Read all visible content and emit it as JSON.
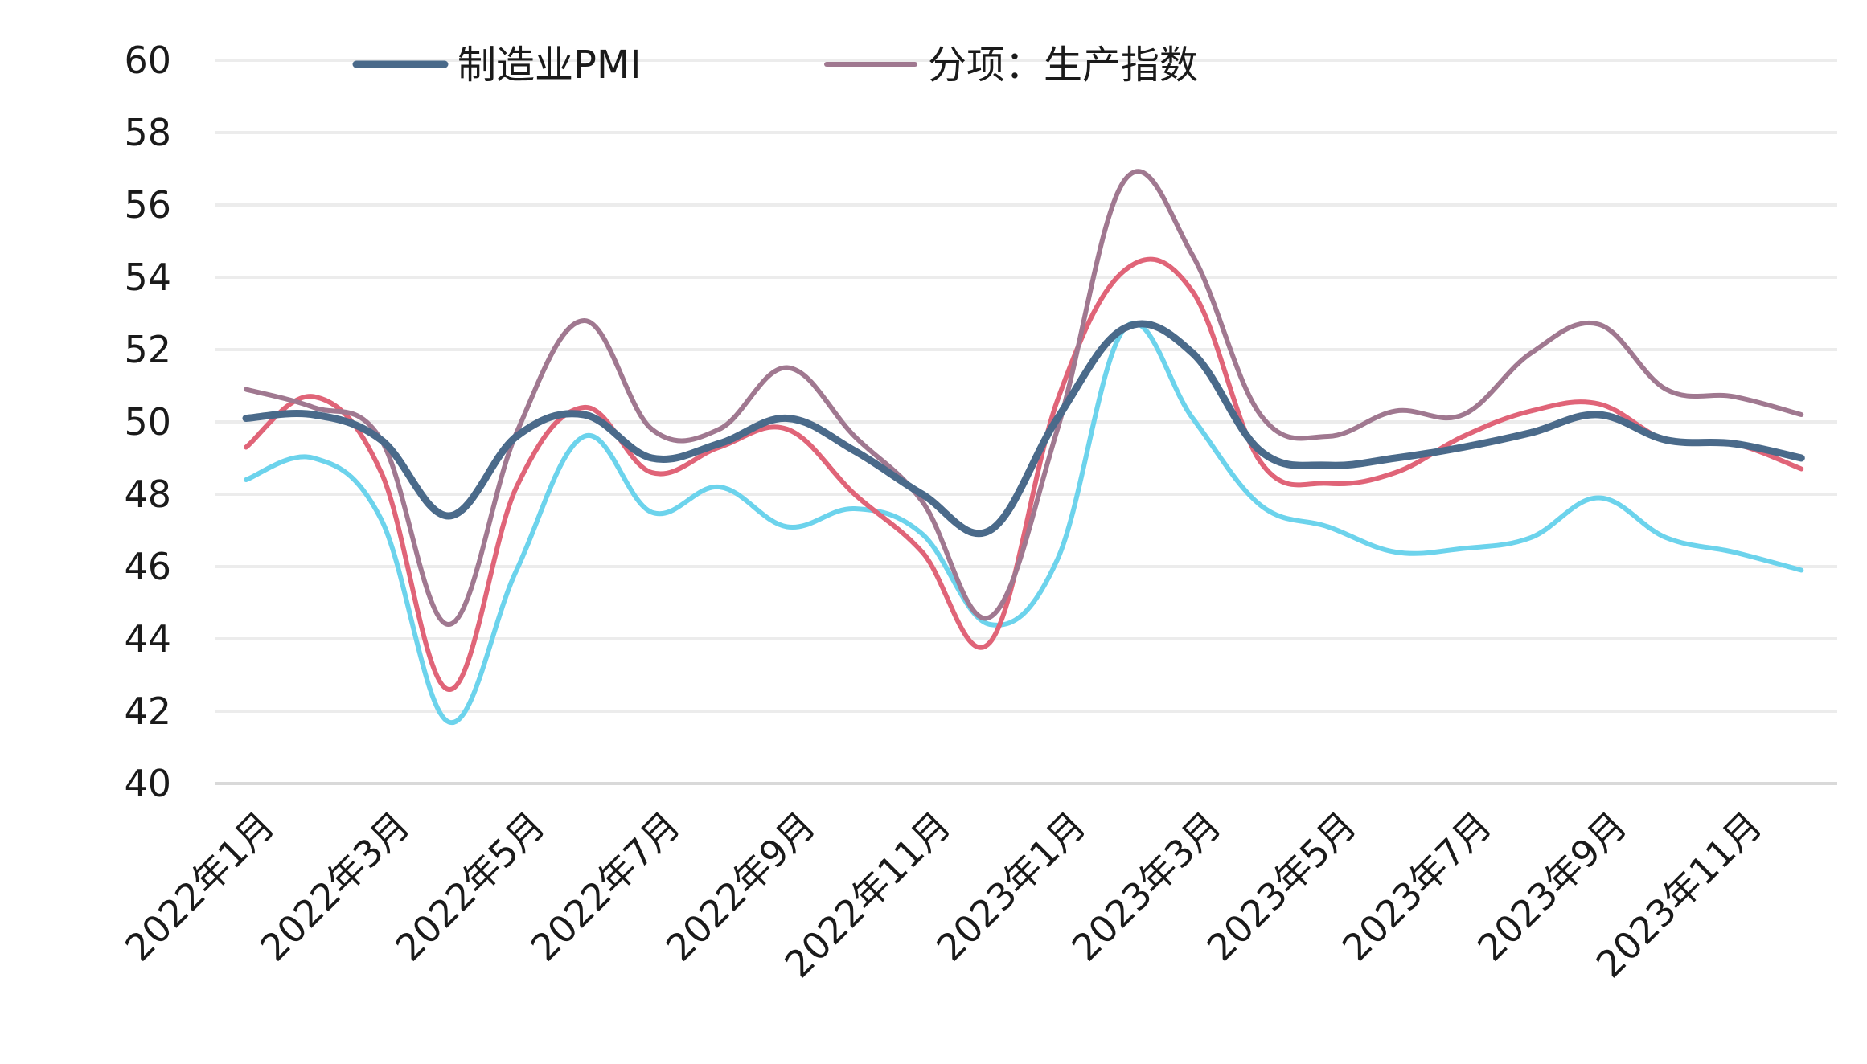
{
  "chart_data": {
    "type": "line",
    "title": "",
    "xlabel": "",
    "ylabel": "",
    "ylim": [
      40,
      60
    ],
    "y_ticks": [
      40,
      42,
      44,
      46,
      48,
      50,
      52,
      54,
      56,
      58,
      60
    ],
    "grid": true,
    "legend_position": "top",
    "categories": [
      "2022年1月",
      "2022年2月",
      "2022年3月",
      "2022年4月",
      "2022年5月",
      "2022年6月",
      "2022年7月",
      "2022年8月",
      "2022年9月",
      "2022年10月",
      "2022年11月",
      "2022年12月",
      "2023年1月",
      "2023年2月",
      "2023年3月",
      "2023年4月",
      "2023年5月",
      "2023年6月",
      "2023年7月",
      "2023年8月",
      "2023年9月",
      "2023年10月",
      "2023年11月",
      "2023年12月"
    ],
    "x_tick_labels": [
      "2022年1月",
      "2022年3月",
      "2022年5月",
      "2022年7月",
      "2022年9月",
      "2022年11月",
      "2023年1月",
      "2023年3月",
      "2023年5月",
      "2023年7月",
      "2023年9月",
      "2023年11月"
    ],
    "series": [
      {
        "name": "制造业PMI",
        "color": "#4a6a8a",
        "width": 9,
        "in_legend": true,
        "values": [
          50.1,
          50.2,
          49.5,
          47.4,
          49.6,
          50.2,
          49.0,
          49.4,
          50.1,
          49.2,
          48.0,
          47.0,
          50.1,
          52.6,
          51.9,
          49.2,
          48.8,
          49.0,
          49.3,
          49.7,
          50.2,
          49.5,
          49.4,
          49.0
        ]
      },
      {
        "name": "分项：生产指数",
        "color": "#a07890",
        "width": 6,
        "in_legend": true,
        "values": [
          50.9,
          50.4,
          49.5,
          44.4,
          49.7,
          52.8,
          49.8,
          49.8,
          51.5,
          49.6,
          47.8,
          44.6,
          49.8,
          56.7,
          54.6,
          50.2,
          49.6,
          50.3,
          50.2,
          51.9,
          52.7,
          50.9,
          50.7,
          50.2
        ]
      },
      {
        "color": "#e06478",
        "width": 6,
        "in_legend": false,
        "values": [
          49.3,
          50.7,
          48.6,
          42.6,
          48.2,
          50.4,
          48.6,
          49.3,
          49.8,
          48.0,
          46.4,
          43.9,
          50.6,
          54.2,
          53.6,
          48.9,
          48.3,
          48.6,
          49.6,
          50.3,
          50.5,
          49.5,
          49.4,
          48.7
        ]
      },
      {
        "color": "#6cd3ec",
        "width": 6,
        "in_legend": false,
        "values": [
          48.4,
          49.0,
          47.3,
          41.7,
          45.9,
          49.6,
          47.5,
          48.2,
          47.1,
          47.6,
          46.9,
          44.4,
          46.2,
          52.6,
          50.1,
          47.7,
          47.1,
          46.4,
          46.5,
          46.8,
          47.9,
          46.8,
          46.4,
          45.9
        ]
      }
    ]
  }
}
